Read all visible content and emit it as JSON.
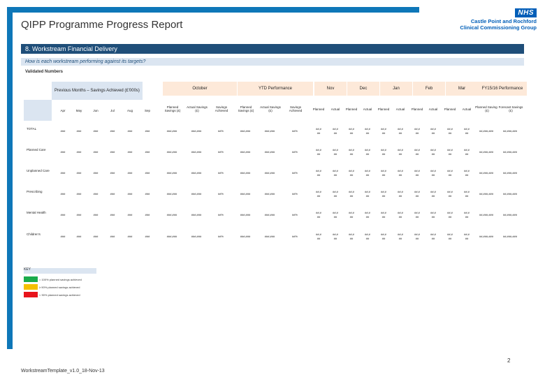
{
  "header": {
    "title": "QIPP Programme Progress Report",
    "logo_badge": "NHS",
    "logo_line1": "Castle Point and Rochford",
    "logo_line2": "Clinical Commissioning Group"
  },
  "section": {
    "title": "8. Workstream Financial Delivery",
    "question": "How is each workstream performing against its targets?",
    "validated_label": "Validated Numbers"
  },
  "table": {
    "group_previous": "Previous Months – Savings Achieved (£'000s)",
    "group_october": "October",
    "group_ytd": "YTD Performance",
    "group_fy": "FY15/16 Performance",
    "prev_months": [
      "Apr",
      "May",
      "Jun",
      "Jul",
      "Aug",
      "Sep"
    ],
    "oct_cols": [
      "Planned Savings (£)",
      "Actual Savings (£)",
      "Savings Achieved"
    ],
    "ytd_cols": [
      "Planned Savings (£)",
      "Actual Savings (£)",
      "Savings Achieved"
    ],
    "future_months": [
      "Nov",
      "Dec",
      "Jan",
      "Feb",
      "Mar"
    ],
    "future_sub": [
      "Planned",
      "Actual"
    ],
    "fy_cols": [
      "Planned Savings (£)",
      "Forecast Savings (£)"
    ],
    "rows": [
      {
        "label": "TOTAL"
      },
      {
        "label": "Planned Care"
      },
      {
        "label": "Unplanned Care"
      },
      {
        "label": "Prescribing"
      },
      {
        "label": "Mental Health"
      },
      {
        "label": "Children's"
      }
    ],
    "placeholder": {
      "small": "###",
      "money": "###,###",
      "pct": "##%",
      "future_top": "##,#",
      "future_bottom": "##",
      "fy": "##,###,###"
    }
  },
  "key": {
    "title": "KEY",
    "items": [
      {
        "color": "#1aab4b",
        "label": "= 100% planned savings achieved"
      },
      {
        "color": "#f4c000",
        "label": "≥ 90% planned savings achieved"
      },
      {
        "color": "#e8141c",
        "label": "< 90% planned savings achieved"
      }
    ]
  },
  "page_number": "2",
  "footer": "WorkstreamTemplate_v1.0_18-Nov-13"
}
